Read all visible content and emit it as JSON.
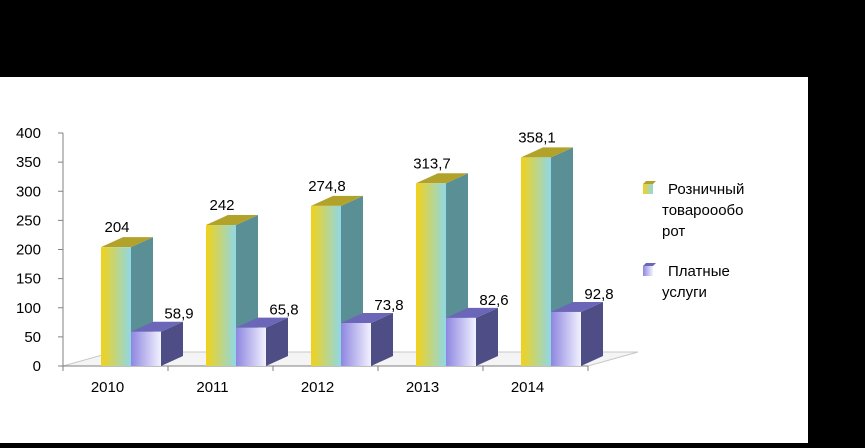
{
  "chart_data": {
    "type": "bar",
    "title": "",
    "xlabel": "",
    "ylabel": "",
    "categories": [
      "2010",
      "2011",
      "2012",
      "2013",
      "2014"
    ],
    "ylim": [
      0,
      400
    ],
    "yticks": [
      0,
      50,
      100,
      150,
      200,
      250,
      300,
      350,
      400
    ],
    "grid": false,
    "legend_position": "right",
    "series": [
      {
        "name": "Розничный товарооборот",
        "legend_lines": [
          "Розничный",
          "товароообо",
          "рот"
        ],
        "values": [
          204,
          242,
          274.8,
          313.7,
          358.1
        ],
        "labels": [
          "204",
          "242",
          "274,8",
          "313,7",
          "358,1"
        ],
        "color_front_start": "#f2d21a",
        "color_front_end": "#8fd8e6",
        "color_side": "#5a8f95",
        "color_top": "#b3a22a"
      },
      {
        "name": "Платные услуги",
        "legend_lines": [
          "Платные",
          "услуги"
        ],
        "values": [
          58.9,
          65.8,
          73.8,
          82.6,
          92.8
        ],
        "labels": [
          "58,9",
          "65,8",
          "73,8",
          "82,6",
          "92,8"
        ],
        "color_front_start": "#8e86e0",
        "color_front_end": "#f2f2ff",
        "color_side": "#4f4d86",
        "color_top": "#6b66b8"
      }
    ]
  }
}
